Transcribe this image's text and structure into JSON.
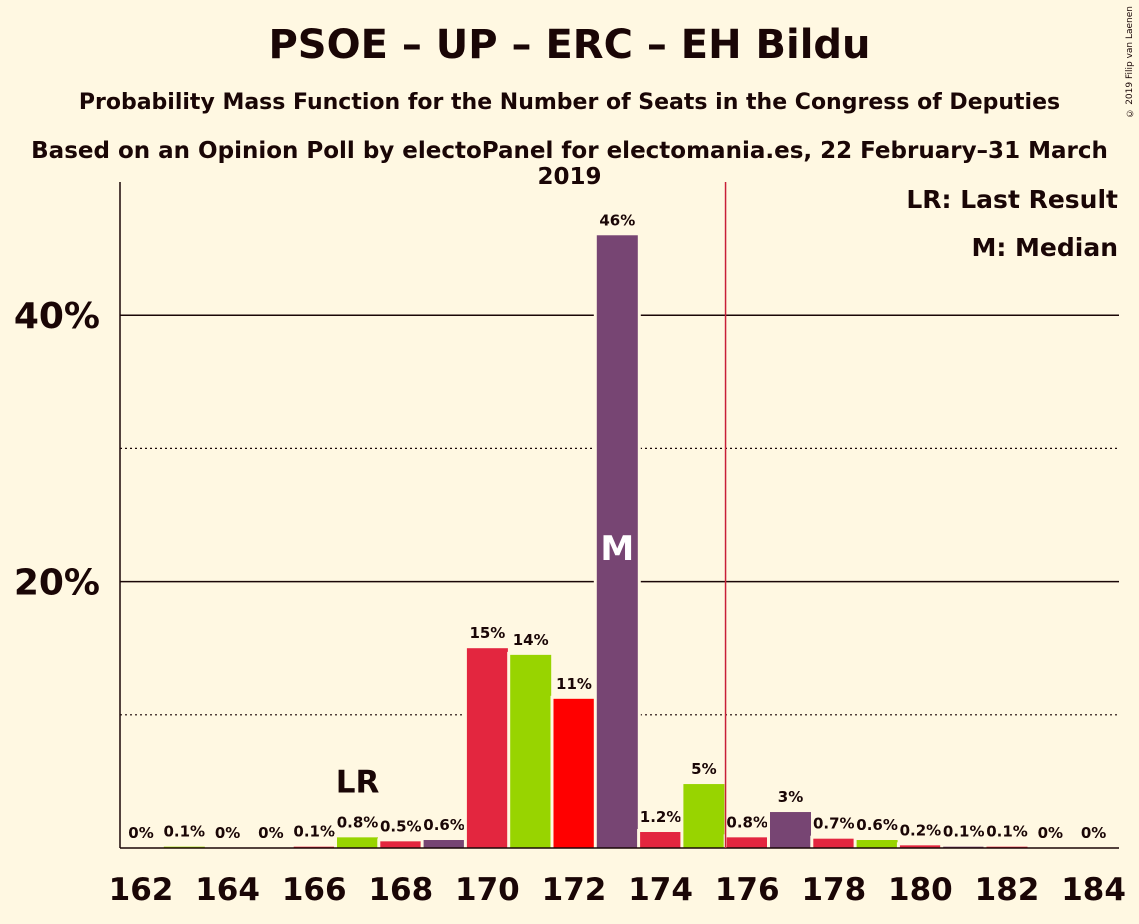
{
  "header": {
    "title": "PSOE – UP – ERC – EH Bildu",
    "subtitle": "Probability Mass Function for the Number of Seats in the Congress of Deputies",
    "subtitle2": "Based on an Opinion Poll by electoPanel for electomania.es, 22 February–31 March 2019",
    "copyright": "© 2019 Filip van Laenen"
  },
  "legend": {
    "lr": "LR: Last Result",
    "median": "M: Median"
  },
  "colors": {
    "background": "#fff8e2",
    "text": "#1a0606",
    "psoe": "#e3263f",
    "up": "#98d400",
    "erc": "#ff0000",
    "bildu": "#774573",
    "majority_line": "#c81f38"
  },
  "chart_data": {
    "type": "bar",
    "x": [
      162,
      163,
      164,
      165,
      166,
      167,
      168,
      169,
      170,
      171,
      172,
      173,
      174,
      175,
      176,
      177,
      178,
      179,
      180,
      181,
      182,
      183,
      184
    ],
    "values": [
      0,
      0.1,
      0,
      0,
      0.1,
      0.8,
      0.5,
      0.6,
      15,
      14.5,
      11.2,
      46,
      1.2,
      4.8,
      0.8,
      2.7,
      0.7,
      0.6,
      0.2,
      0.1,
      0.1,
      0,
      0
    ],
    "labels": [
      "0%",
      "0.1%",
      "0%",
      "0%",
      "0.1%",
      "0.8%",
      "0.5%",
      "0.6%",
      "15%",
      "14%",
      "11%",
      "46%",
      "1.2%",
      "5%",
      "0.8%",
      "3%",
      "0.7%",
      "0.6%",
      "0.2%",
      "0.1%",
      "0.1%",
      "0%",
      "0%"
    ],
    "bar_colors": [
      "#e3263f",
      "#98d400",
      "#ff0000",
      "#774573",
      "#e3263f",
      "#98d400",
      "#e3263f",
      "#774573",
      "#e3263f",
      "#98d400",
      "#ff0000",
      "#774573",
      "#e3263f",
      "#98d400",
      "#e3263f",
      "#774573",
      "#e3263f",
      "#98d400",
      "#e3263f",
      "#774573",
      "#e3263f",
      "#98d400",
      "#e3263f"
    ],
    "x_tick_labels": [
      "162",
      "164",
      "166",
      "168",
      "170",
      "172",
      "174",
      "176",
      "178",
      "180",
      "182",
      "184"
    ],
    "y_tick_labels": [
      "20%",
      "40%"
    ],
    "y_major_ticks": [
      20,
      40
    ],
    "y_minor_ticks": [
      10,
      30
    ],
    "ylim": [
      0,
      50
    ],
    "last_result": 167,
    "last_result_label": "LR",
    "median": 173,
    "median_label": "M",
    "majority_threshold": 175.5
  }
}
